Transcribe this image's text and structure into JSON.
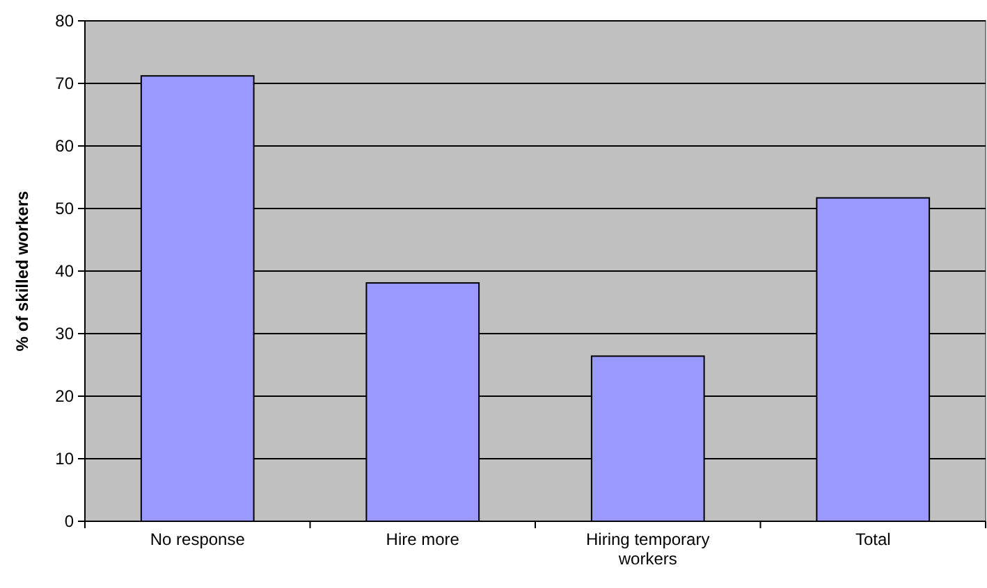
{
  "chart_data": {
    "type": "bar",
    "ylabel": "% of skilled workers",
    "categories": [
      "No response",
      "Hire more",
      "Hiring temporary workers",
      "Total"
    ],
    "values": [
      71.2,
      38.1,
      26.4,
      51.7
    ],
    "color": "#9999ff",
    "ylim": [
      0,
      80
    ],
    "yticks": [
      0,
      10,
      20,
      30,
      40,
      50,
      60,
      70,
      80
    ],
    "grid": "y"
  }
}
